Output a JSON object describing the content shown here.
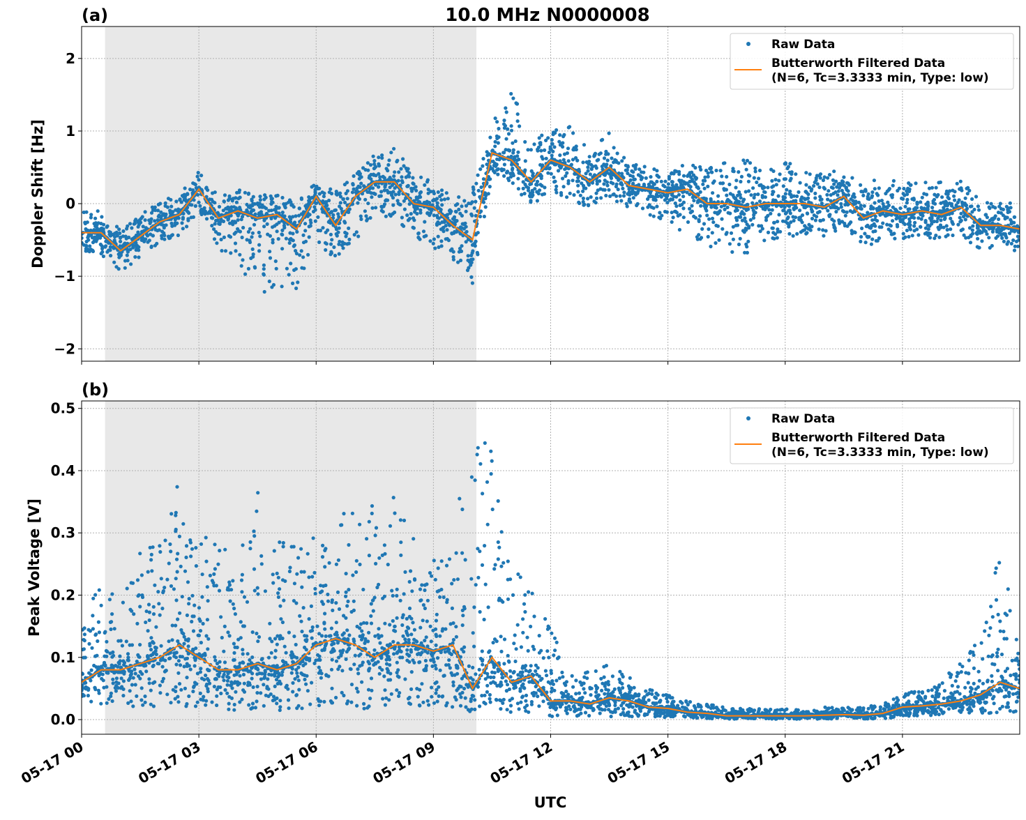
{
  "title": "10.0 MHz N0000008",
  "xlabel": "UTC",
  "colors": {
    "raw": "#1f77b4",
    "filtered": "#ff7f0e",
    "night_shade": "#e8e8e8",
    "grid": "#b0b0b0"
  },
  "legend": {
    "raw_label": "Raw Data",
    "filtered_label_1": "Butterworth Filtered Data",
    "filtered_label_2": "(N=6, Tc=3.3333 min, Type: low)",
    "placement": "top-right"
  },
  "x_tick_labels": [
    "05-17 00",
    "05-17 03",
    "05-17 06",
    "05-17 09",
    "05-17 12",
    "05-17 15",
    "05-17 18",
    "05-17 21"
  ],
  "chart_data": [
    {
      "type": "scatter+line",
      "panel_label": "(a)",
      "ylabel": "Doppler Shift [Hz]",
      "xlim_hours": [
        0,
        24
      ],
      "x_ticks_hours": [
        0,
        3,
        6,
        9,
        12,
        15,
        18,
        21
      ],
      "ylim": [
        -2.17,
        2.44
      ],
      "y_ticks": [
        -2,
        -1,
        0,
        1,
        2
      ],
      "y_tick_labels": [
        "−2",
        "−1",
        "0",
        "1",
        "2"
      ],
      "grid": true,
      "shaded_hours": [
        0.6,
        10.1
      ],
      "x_hours": [
        0,
        0.5,
        1,
        1.5,
        2,
        2.5,
        3,
        3.5,
        4,
        4.5,
        5,
        5.5,
        6,
        6.5,
        7,
        7.5,
        8,
        8.5,
        9,
        9.5,
        10,
        10.5,
        11,
        11.5,
        12,
        12.5,
        13,
        13.5,
        14,
        14.5,
        15,
        15.5,
        16,
        16.5,
        17,
        17.5,
        18,
        18.5,
        19,
        19.5,
        20,
        20.5,
        21,
        21.5,
        22,
        22.5,
        23,
        23.5,
        24
      ],
      "filtered": [
        -0.4,
        -0.4,
        -0.65,
        -0.45,
        -0.25,
        -0.15,
        0.2,
        -0.2,
        -0.1,
        -0.2,
        -0.15,
        -0.35,
        0.1,
        -0.3,
        0.1,
        0.3,
        0.3,
        0.0,
        -0.05,
        -0.3,
        -0.5,
        0.7,
        0.6,
        0.3,
        0.6,
        0.5,
        0.3,
        0.5,
        0.25,
        0.2,
        0.15,
        0.2,
        0.0,
        0.0,
        -0.05,
        0.0,
        0.0,
        0.0,
        -0.05,
        0.1,
        -0.2,
        -0.1,
        -0.15,
        -0.1,
        -0.15,
        -0.05,
        -0.3,
        -0.3,
        -0.35
      ],
      "raw_min": [
        -0.7,
        -0.7,
        -0.95,
        -0.75,
        -0.55,
        -0.45,
        -0.1,
        -0.6,
        -0.9,
        -1.3,
        -1.2,
        -1.2,
        -0.5,
        -0.8,
        -0.5,
        -0.2,
        -0.2,
        -0.5,
        -0.6,
        -0.8,
        -1.1,
        0.4,
        0.25,
        0.0,
        0.1,
        0.0,
        -0.05,
        0.1,
        -0.1,
        -0.15,
        -0.3,
        -0.4,
        -0.6,
        -0.7,
        -0.7,
        -0.5,
        -0.5,
        -0.45,
        -0.5,
        -0.3,
        -0.6,
        -0.5,
        -0.5,
        -0.45,
        -0.5,
        -0.45,
        -0.65,
        -0.6,
        -0.7
      ],
      "raw_max": [
        -0.1,
        -0.1,
        -0.35,
        -0.15,
        0.05,
        0.15,
        0.45,
        0.1,
        0.2,
        0.1,
        0.15,
        0.0,
        0.3,
        0.2,
        0.4,
        0.7,
        0.8,
        0.4,
        0.3,
        0.1,
        0.2,
        1.1,
        1.6,
        0.9,
        1.0,
        1.1,
        0.7,
        1.0,
        0.6,
        0.5,
        0.45,
        0.55,
        0.5,
        0.6,
        0.6,
        0.5,
        0.6,
        0.45,
        0.4,
        0.5,
        0.3,
        0.35,
        0.3,
        0.35,
        0.3,
        0.35,
        0.05,
        0.05,
        0.0
      ]
    },
    {
      "type": "scatter+line",
      "panel_label": "(b)",
      "ylabel": "Peak Voltage [V]",
      "xlim_hours": [
        0,
        24
      ],
      "x_ticks_hours": [
        0,
        3,
        6,
        9,
        12,
        15,
        18,
        21
      ],
      "ylim": [
        -0.0235,
        0.512
      ],
      "y_ticks": [
        0.0,
        0.1,
        0.2,
        0.3,
        0.4,
        0.5
      ],
      "y_tick_labels": [
        "0.0",
        "0.1",
        "0.2",
        "0.3",
        "0.4",
        "0.5"
      ],
      "grid": true,
      "shaded_hours": [
        0.6,
        10.1
      ],
      "x_hours": [
        0,
        0.5,
        1,
        1.5,
        2,
        2.5,
        3,
        3.5,
        4,
        4.5,
        5,
        5.5,
        6,
        6.5,
        7,
        7.5,
        8,
        8.5,
        9,
        9.5,
        10,
        10.5,
        11,
        11.5,
        12,
        12.5,
        13,
        13.5,
        14,
        14.5,
        15,
        15.5,
        16,
        16.5,
        17,
        17.5,
        18,
        18.5,
        19,
        19.5,
        20,
        20.5,
        21,
        21.5,
        22,
        22.5,
        23,
        23.5,
        24
      ],
      "filtered": [
        0.06,
        0.08,
        0.08,
        0.09,
        0.1,
        0.12,
        0.1,
        0.08,
        0.08,
        0.09,
        0.08,
        0.09,
        0.12,
        0.13,
        0.12,
        0.1,
        0.12,
        0.12,
        0.11,
        0.12,
        0.05,
        0.1,
        0.06,
        0.07,
        0.03,
        0.03,
        0.025,
        0.035,
        0.03,
        0.02,
        0.018,
        0.012,
        0.01,
        0.006,
        0.006,
        0.006,
        0.006,
        0.006,
        0.007,
        0.008,
        0.007,
        0.01,
        0.02,
        0.022,
        0.025,
        0.03,
        0.04,
        0.06,
        0.05
      ],
      "raw_min": [
        0.02,
        0.02,
        0.02,
        0.02,
        0.02,
        0.02,
        0.02,
        0.015,
        0.015,
        0.015,
        0.015,
        0.015,
        0.02,
        0.02,
        0.02,
        0.015,
        0.02,
        0.02,
        0.02,
        0.02,
        0.01,
        0.02,
        0.01,
        0.01,
        0.005,
        0.005,
        0.005,
        0.005,
        0.005,
        0.005,
        0.003,
        0.002,
        0.002,
        0.001,
        0.001,
        0.001,
        0.001,
        0.001,
        0.001,
        0.001,
        0.001,
        0.001,
        0.005,
        0.005,
        0.008,
        0.01,
        0.01,
        0.01,
        0.01
      ],
      "raw_max": [
        0.16,
        0.22,
        0.2,
        0.28,
        0.3,
        0.39,
        0.3,
        0.3,
        0.27,
        0.37,
        0.3,
        0.28,
        0.3,
        0.32,
        0.35,
        0.35,
        0.36,
        0.3,
        0.26,
        0.3,
        0.48,
        0.45,
        0.25,
        0.22,
        0.16,
        0.07,
        0.08,
        0.09,
        0.07,
        0.05,
        0.04,
        0.03,
        0.025,
        0.02,
        0.018,
        0.018,
        0.018,
        0.018,
        0.02,
        0.02,
        0.02,
        0.025,
        0.05,
        0.05,
        0.06,
        0.1,
        0.13,
        0.28,
        0.12
      ]
    }
  ]
}
